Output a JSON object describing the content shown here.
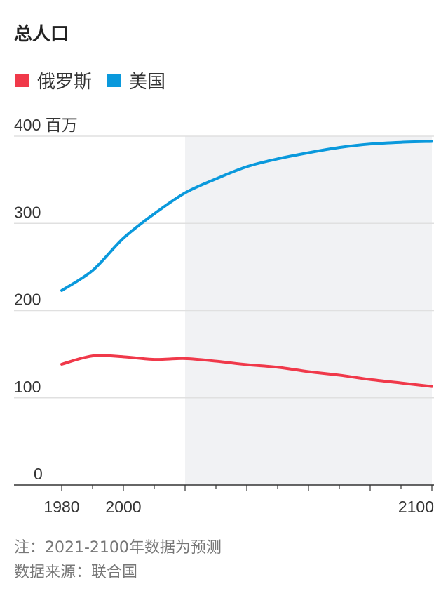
{
  "chart_data": {
    "type": "line",
    "title": "总人口",
    "y_unit_label": "百万",
    "x_ticks": [
      1980,
      2000,
      2100
    ],
    "y_ticks": [
      0,
      100,
      200,
      300,
      400
    ],
    "ylim": [
      0,
      400
    ],
    "xlim": [
      1980,
      2100
    ],
    "grid": "horizontal",
    "legend_placement": "top-left",
    "projection_shading_start": 2020,
    "x": [
      1980,
      1990,
      2000,
      2010,
      2020,
      2030,
      2040,
      2050,
      2060,
      2070,
      2080,
      2090,
      2100
    ],
    "series": [
      {
        "name": "俄罗斯",
        "color": "#f0394a",
        "values": [
          138.5,
          148,
          147,
          144,
          145,
          142,
          138,
          135,
          130,
          126,
          121,
          117,
          113
        ]
      },
      {
        "name": "美国",
        "color": "#0a99dc",
        "values": [
          223,
          246,
          283,
          311,
          335,
          351,
          365,
          374,
          381,
          387,
          391,
          393,
          394
        ]
      }
    ]
  },
  "notes": [
    "注：2021-2100年数据为预测",
    "数据来源：联合国"
  ]
}
